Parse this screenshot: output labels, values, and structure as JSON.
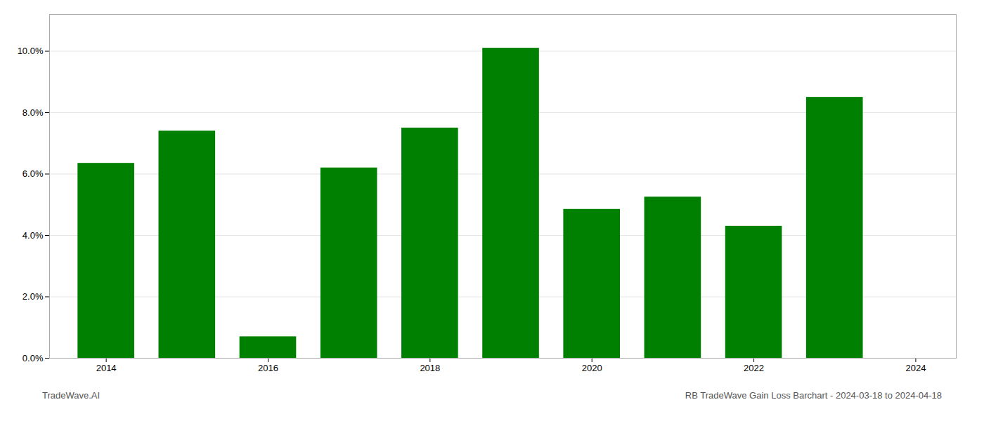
{
  "chart_data": {
    "type": "bar",
    "title": "RB TradeWave Gain Loss Barchart - 2024-03-18 to 2024-04-18",
    "annotations": [
      "TradeWave.AI"
    ],
    "x": [
      2014,
      2015,
      2016,
      2017,
      2018,
      2019,
      2020,
      2021,
      2022,
      2023
    ],
    "values": [
      0.0635,
      0.074,
      0.007,
      0.062,
      0.075,
      0.101,
      0.0485,
      0.0525,
      0.043,
      0.085
    ],
    "color": "#008000",
    "xlim": [
      2013.3,
      2024.5
    ],
    "xticks": [
      2014,
      2016,
      2018,
      2020,
      2022,
      2024
    ],
    "ylim": [
      0,
      0.112
    ],
    "yticks": [
      {
        "value": 0,
        "label": "0.0%"
      },
      {
        "value": 0.02,
        "label": "2.0%"
      },
      {
        "value": 0.04,
        "label": "4.0%"
      },
      {
        "value": 0.06,
        "label": "6.0%"
      },
      {
        "value": 0.08,
        "label": "8.0%"
      },
      {
        "value": 0.1,
        "label": "10.0%"
      }
    ],
    "grid": true
  }
}
